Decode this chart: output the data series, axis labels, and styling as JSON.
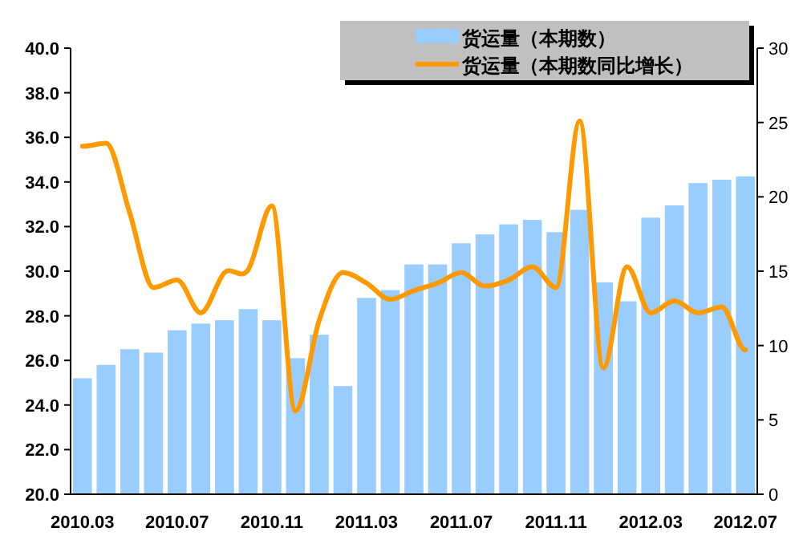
{
  "chart_data": {
    "type": "bar",
    "categories": [
      "2010.03",
      null,
      null,
      null,
      "2010.07",
      null,
      null,
      null,
      "2010.11",
      null,
      null,
      null,
      "2011.03",
      null,
      null,
      null,
      "2011.07",
      null,
      null,
      null,
      "2011.11",
      null,
      null,
      null,
      "2012.03",
      null,
      null,
      null,
      "2012.07"
    ],
    "series": [
      {
        "name": "货运量（本期数）",
        "color": "#99ccff",
        "values": [
          25.2,
          25.8,
          26.5,
          26.35,
          27.35,
          27.65,
          27.8,
          28.3,
          27.8,
          26.1,
          27.15,
          24.85,
          28.8,
          29.15,
          30.3,
          30.3,
          31.25,
          31.65,
          32.1,
          32.3,
          31.75,
          32.75,
          29.5,
          28.65,
          32.4,
          32.95,
          33.95,
          34.1,
          34.25
        ]
      },
      {
        "name": "货运量（本期数同比增长）",
        "type": "line",
        "axis": "y2",
        "color": "#ff9900",
        "values": [
          23.4,
          23.6,
          18.9,
          13.9,
          14.4,
          12.2,
          14.9,
          15.1,
          19.4,
          5.6,
          11.7,
          14.9,
          14.2,
          13.1,
          13.7,
          14.2,
          14.9,
          14.0,
          14.4,
          15.3,
          13.9,
          25.1,
          8.5,
          15.3,
          12.2,
          13.0,
          12.2,
          12.6,
          9.7
        ]
      }
    ],
    "ylim": [
      20,
      40
    ],
    "yticks": [
      {
        "value": 20,
        "label": "20.0"
      },
      {
        "value": 22,
        "label": "22.0"
      },
      {
        "value": 24,
        "label": "24.0"
      },
      {
        "value": 26,
        "label": "26.0"
      },
      {
        "value": 28,
        "label": "28.0"
      },
      {
        "value": 30,
        "label": "30.0"
      },
      {
        "value": 32,
        "label": "32.0"
      },
      {
        "value": 34,
        "label": "34.0"
      },
      {
        "value": 36,
        "label": "36.0"
      },
      {
        "value": 38,
        "label": "38.0"
      },
      {
        "value": 40,
        "label": "40.0"
      }
    ],
    "y2lim": [
      0,
      30
    ],
    "y2ticks": [
      0,
      5,
      10,
      15,
      20,
      25,
      30
    ],
    "legend": "top right",
    "grid": false
  }
}
